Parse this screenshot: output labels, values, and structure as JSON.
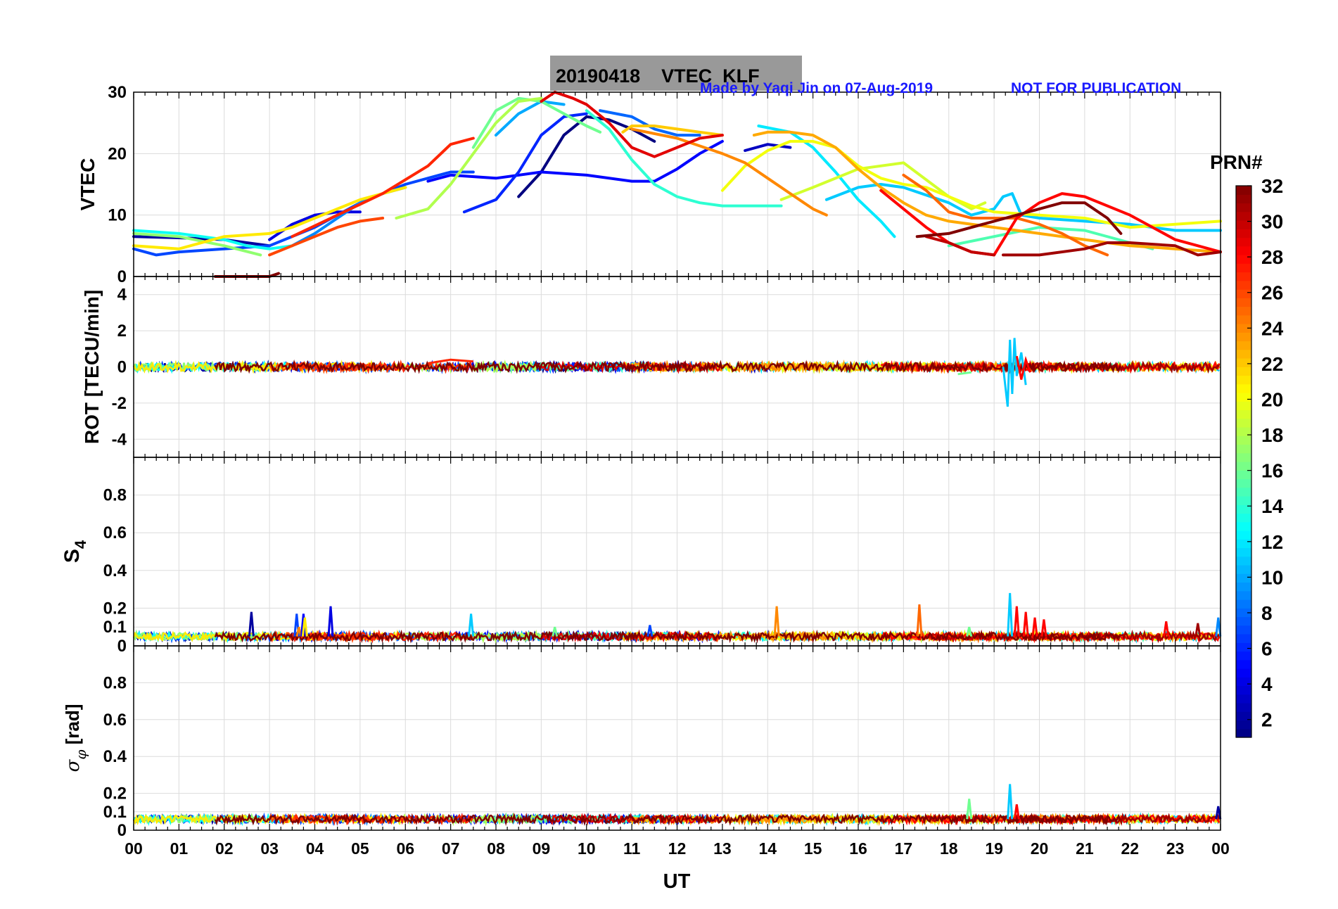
{
  "header": {
    "title": "20190418    VTEC  KLF",
    "credit": "Made by Yaqi Jin on 07-Aug-2019",
    "notice": "NOT FOR PUBLICATION"
  },
  "colorbar": {
    "label": "PRN#",
    "ticks": [
      "2",
      "4",
      "6",
      "8",
      "10",
      "12",
      "14",
      "16",
      "18",
      "20",
      "22",
      "24",
      "26",
      "28",
      "30",
      "32"
    ],
    "range": [
      1,
      32
    ],
    "colormap": "jet"
  },
  "colors": {
    "title_box": "#999999",
    "credit_text": "#1a1aff",
    "grid": "#dcdcdc"
  },
  "chart_data": [
    {
      "type": "line",
      "panel": "vtec",
      "ylabel": "VTEC",
      "ylim": [
        0,
        30
      ],
      "yticks": [
        "0",
        "10",
        "20",
        "30"
      ],
      "xlim": [
        0,
        24
      ],
      "grid": true,
      "series": [
        {
          "prn": 1,
          "x": [
            8.5,
            9.0,
            9.5,
            10.0,
            10.5,
            11.0,
            11.5
          ],
          "values": [
            13,
            17,
            23,
            26,
            25.5,
            24,
            22
          ]
        },
        {
          "prn": 2,
          "x": [
            0.0,
            1.0,
            2.0,
            2.5,
            3.0
          ],
          "values": [
            6.5,
            6.3,
            6,
            5.5,
            5
          ]
        },
        {
          "prn": 3,
          "x": [
            13.5,
            14.0,
            14.5
          ],
          "values": [
            20.5,
            21.5,
            21
          ]
        },
        {
          "prn": 4,
          "x": [
            3.0,
            3.5,
            4.0,
            4.5,
            5.0
          ],
          "values": [
            6,
            8.5,
            10,
            10.5,
            10.5
          ]
        },
        {
          "prn": 5,
          "x": [
            6.5,
            7.0,
            8.0,
            9.0,
            10.0,
            11.0,
            11.5,
            12.0,
            12.5,
            13.0
          ],
          "values": [
            15.5,
            16.5,
            16,
            17,
            16.5,
            15.5,
            15.5,
            17.5,
            20,
            22
          ]
        },
        {
          "prn": 6,
          "x": [
            7.3,
            8.0,
            8.5,
            9.0,
            9.5,
            10.0
          ],
          "values": [
            10.5,
            12.5,
            17,
            23,
            26,
            26.5
          ]
        },
        {
          "prn": 7,
          "x": [
            0.0,
            0.5,
            1.0,
            2.0,
            3.0,
            4.0,
            5.0,
            6.0,
            7.0,
            7.5
          ],
          "values": [
            4.5,
            3.5,
            4,
            4.5,
            5,
            8,
            12,
            15,
            17,
            17
          ]
        },
        {
          "prn": 8,
          "x": [
            10.3,
            11.0,
            11.5,
            12.0,
            12.5
          ],
          "values": [
            27,
            26,
            24,
            23,
            23
          ]
        },
        {
          "prn": 9,
          "x": [
            3.5,
            4.0,
            4.5,
            5.0,
            5.5,
            6.0
          ],
          "values": [
            5,
            7,
            9.5,
            12,
            13.5,
            14.5
          ]
        },
        {
          "prn": 10,
          "x": [
            8.0,
            8.5,
            9.0,
            9.5
          ],
          "values": [
            23,
            26.5,
            28.5,
            28
          ]
        },
        {
          "prn": 11,
          "x": [
            15.3,
            16.0,
            16.5,
            17.0,
            18.0,
            18.5,
            19.0,
            19.2,
            19.4,
            19.6,
            20.0,
            21.0,
            22.0,
            23.0,
            24.0
          ],
          "values": [
            12.5,
            14.5,
            15,
            14.5,
            12,
            10,
            11,
            13,
            13.5,
            10,
            9.5,
            9,
            8.5,
            7.5,
            7.5
          ]
        },
        {
          "prn": 12,
          "x": [
            13.8,
            14.5,
            15.0,
            15.5,
            16.0,
            16.5,
            16.8
          ],
          "values": [
            24.5,
            23.5,
            21,
            17,
            12.5,
            9,
            6.5
          ]
        },
        {
          "prn": 13,
          "x": [
            0.0,
            1.0,
            2.0,
            2.5,
            3.0,
            3.5
          ],
          "values": [
            7.5,
            7,
            6,
            5,
            4.5,
            5
          ]
        },
        {
          "prn": 14,
          "x": [
            10.0,
            10.5,
            11.0,
            11.5,
            12.0,
            12.5,
            13.0,
            14.0,
            14.3
          ],
          "values": [
            27,
            24,
            19,
            15,
            13,
            12,
            11.5,
            11.5,
            11.5
          ]
        },
        {
          "prn": 15,
          "x": [
            18.0,
            19.0,
            20.0,
            21.0,
            22.0,
            22.5
          ],
          "values": [
            5,
            6.5,
            8,
            7.5,
            5.5,
            4.5
          ]
        },
        {
          "prn": 16,
          "x": [
            7.5,
            8.0,
            8.5,
            9.0,
            9.5,
            10.0,
            10.3
          ],
          "values": [
            21,
            27,
            29,
            28.5,
            26.5,
            24.5,
            23.5
          ]
        },
        {
          "prn": 17,
          "x": [
            0.0,
            1.0,
            2.0,
            2.8
          ],
          "values": [
            7,
            6.5,
            5,
            3.5
          ]
        },
        {
          "prn": 18,
          "x": [
            5.8,
            6.5,
            7.0,
            7.5,
            8.0,
            8.5,
            9.0
          ],
          "values": [
            9.5,
            11,
            15,
            20,
            25,
            28.5,
            29
          ]
        },
        {
          "prn": 19,
          "x": [
            14.3,
            15.0,
            16.0,
            17.0,
            18.0,
            18.5,
            18.8
          ],
          "values": [
            12.5,
            14.5,
            17.5,
            18.5,
            13,
            11,
            12
          ]
        },
        {
          "prn": 20,
          "x": [
            13.0,
            13.5,
            14.0,
            14.5,
            15.0,
            15.5,
            16.0,
            16.5,
            17.0,
            17.5,
            18.0,
            18.5,
            19.0,
            20.0,
            21.0,
            22.0,
            23.0,
            24.0
          ],
          "values": [
            14,
            18,
            20.5,
            22,
            22,
            21,
            18,
            16,
            15,
            14.5,
            13,
            11.5,
            10.5,
            10,
            9.5,
            8,
            8.5,
            9
          ]
        },
        {
          "prn": 21,
          "x": [
            0.0,
            1.0,
            2.0,
            3.0,
            3.5,
            4.0,
            4.5,
            5.0,
            5.5,
            6.0
          ],
          "values": [
            5,
            4.5,
            6.5,
            7,
            8,
            9.5,
            11,
            12.5,
            13.5,
            14.5
          ]
        },
        {
          "prn": 22,
          "x": [
            10.8,
            11.0,
            11.5,
            12.0,
            12.5,
            13.0
          ],
          "values": [
            23.5,
            24.5,
            24.5,
            24,
            23.5,
            23
          ]
        },
        {
          "prn": 23,
          "x": [
            13.7,
            14.0,
            14.5,
            15.0,
            15.5,
            16.0,
            16.5,
            17.0,
            17.5,
            18.0,
            19.0,
            20.0,
            21.0,
            22.0,
            23.0,
            24.0
          ],
          "values": [
            23,
            23.5,
            23.5,
            23,
            21,
            17.5,
            14.5,
            12,
            10,
            9,
            8,
            7,
            6,
            5,
            4.5,
            4
          ]
        },
        {
          "prn": 24,
          "x": [
            11.0,
            12.0,
            13.0,
            13.5,
            14.0,
            14.5,
            15.0,
            15.3
          ],
          "values": [
            24,
            22.5,
            20,
            18.5,
            16,
            13.5,
            11,
            10
          ]
        },
        {
          "prn": 25,
          "x": [
            17.0,
            17.5,
            18.0,
            18.5,
            19.0,
            19.5,
            20.0,
            20.5,
            21.0,
            21.5
          ],
          "values": [
            16.5,
            14,
            10.5,
            9.5,
            9.5,
            9.5,
            8.5,
            7,
            5,
            3.5
          ]
        },
        {
          "prn": 26,
          "x": [
            3.0,
            3.5,
            4.0,
            4.5,
            5.0,
            5.5
          ],
          "values": [
            3.5,
            5,
            6.5,
            8,
            9,
            9.5
          ]
        },
        {
          "prn": 27,
          "x": [
            3.5,
            4.5,
            5.5,
            6.5,
            7.0,
            7.5
          ],
          "values": [
            6.5,
            10,
            13.5,
            18,
            21.5,
            22.5
          ]
        },
        {
          "prn": 28,
          "x": [
            16.5,
            17.0,
            17.5,
            18.0,
            18.5,
            19.0,
            19.5,
            20.0,
            20.5,
            21.0,
            22.0,
            23.0,
            24.0
          ],
          "values": [
            14,
            11,
            8,
            5.5,
            4,
            3.5,
            9.5,
            12,
            13.5,
            13,
            10,
            6,
            4
          ]
        },
        {
          "prn": 29,
          "x": [
            9.0,
            9.3,
            9.7,
            10.0,
            10.5,
            11.0,
            11.5,
            12.0,
            12.5,
            13.0
          ],
          "values": [
            28.5,
            30,
            29,
            28,
            25,
            21,
            19.5,
            21,
            22.5,
            23
          ]
        },
        {
          "prn": 30,
          "x": [
            17.5,
            18.0,
            18.5,
            19.0
          ],
          "values": [
            6.5,
            5.5,
            4,
            3.5
          ]
        },
        {
          "prn": 31,
          "x": [
            19.2,
            20.0,
            21.0,
            21.5,
            22.0,
            23.0,
            23.5,
            24.0
          ],
          "values": [
            3.5,
            3.5,
            4.5,
            5.5,
            5.5,
            5,
            3.5,
            4
          ]
        },
        {
          "prn": 32,
          "x": [
            1.8,
            2.5,
            3.0,
            3.2,
            17.3,
            18.0,
            19.0,
            20.0,
            20.5,
            21.0,
            21.5,
            21.8
          ],
          "values": [
            0,
            0,
            0,
            0.5,
            6.5,
            7,
            9,
            11,
            12,
            12,
            9.5,
            7
          ]
        }
      ]
    },
    {
      "type": "line",
      "panel": "rot",
      "ylabel": "ROT [TECU/min]",
      "ylim": [
        -5,
        5
      ],
      "yticks": [
        "-4",
        "-2",
        "0",
        "2",
        "4"
      ],
      "xlim": [
        0,
        24
      ],
      "grid": true,
      "baseline": 0,
      "notable_excursions": [
        {
          "prn": 11,
          "x": [
            19.2,
            19.3,
            19.35,
            19.4,
            19.45,
            19.5,
            19.6,
            19.7
          ],
          "values": [
            0,
            -2.2,
            1.5,
            -1.5,
            1.6,
            -0.5,
            0.8,
            -1
          ]
        },
        {
          "prn": 28,
          "x": [
            19.5,
            19.6,
            19.7,
            19.8
          ],
          "values": [
            0.6,
            -0.7,
            0.4,
            -0.3
          ]
        },
        {
          "prn": 27,
          "x": [
            6.5,
            7.0,
            7.5
          ],
          "values": [
            0.2,
            0.4,
            0.3
          ]
        },
        {
          "prn": 16,
          "x": [
            18.2,
            18.5
          ],
          "values": [
            -0.4,
            -0.3
          ]
        }
      ]
    },
    {
      "type": "line",
      "panel": "s4",
      "ylabel": "S4",
      "ylim": [
        0,
        1
      ],
      "yticks": [
        "0",
        "0.1",
        "0.2",
        "0.4",
        "0.6",
        "0.8"
      ],
      "xlim": [
        0,
        24
      ],
      "grid": true,
      "baseline": 0.05,
      "spikes": [
        {
          "prn": 2,
          "x": 2.6,
          "value": 0.18
        },
        {
          "prn": 7,
          "x": 3.6,
          "value": 0.17
        },
        {
          "prn": 24,
          "x": 3.65,
          "value": 0.1
        },
        {
          "prn": 5,
          "x": 3.75,
          "value": 0.17
        },
        {
          "prn": 21,
          "x": 3.78,
          "value": 0.15
        },
        {
          "prn": 4,
          "x": 4.35,
          "value": 0.21
        },
        {
          "prn": 11,
          "x": 7.45,
          "value": 0.17
        },
        {
          "prn": 16,
          "x": 9.3,
          "value": 0.1
        },
        {
          "prn": 7,
          "x": 11.4,
          "value": 0.11
        },
        {
          "prn": 24,
          "x": 14.2,
          "value": 0.21
        },
        {
          "prn": 25,
          "x": 17.35,
          "value": 0.22
        },
        {
          "prn": 16,
          "x": 18.45,
          "value": 0.1
        },
        {
          "prn": 11,
          "x": 19.35,
          "value": 0.28
        },
        {
          "prn": 28,
          "x": 19.5,
          "value": 0.21
        },
        {
          "prn": 28,
          "x": 19.7,
          "value": 0.18
        },
        {
          "prn": 28,
          "x": 19.9,
          "value": 0.15
        },
        {
          "prn": 28,
          "x": 20.1,
          "value": 0.14
        },
        {
          "prn": 28,
          "x": 22.8,
          "value": 0.13
        },
        {
          "prn": 31,
          "x": 23.5,
          "value": 0.12
        },
        {
          "prn": 9,
          "x": 23.95,
          "value": 0.15
        }
      ]
    },
    {
      "type": "line",
      "panel": "sigma_phi",
      "ylabel": "σ_φ [rad]",
      "ylim": [
        0,
        1
      ],
      "yticks": [
        "0",
        "0.1",
        "0.2",
        "0.4",
        "0.6",
        "0.8"
      ],
      "xlabel": "UT",
      "xlim": [
        0,
        24
      ],
      "xticks": [
        "00",
        "01",
        "02",
        "03",
        "04",
        "05",
        "06",
        "07",
        "08",
        "09",
        "10",
        "11",
        "12",
        "13",
        "14",
        "15",
        "16",
        "17",
        "18",
        "19",
        "20",
        "21",
        "22",
        "23",
        "00"
      ],
      "grid": true,
      "baseline": 0.06,
      "spikes": [
        {
          "prn": 16,
          "x": 18.45,
          "value": 0.17
        },
        {
          "prn": 11,
          "x": 19.35,
          "value": 0.25
        },
        {
          "prn": 28,
          "x": 19.5,
          "value": 0.14
        },
        {
          "prn": 2,
          "x": 23.95,
          "value": 0.13
        }
      ]
    }
  ]
}
